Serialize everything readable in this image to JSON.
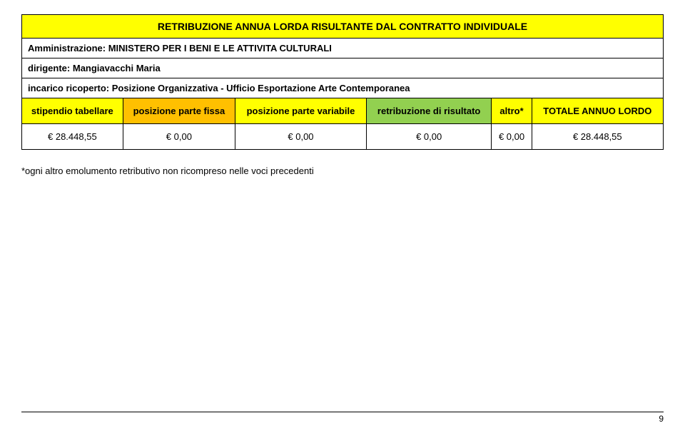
{
  "title": "RETRIBUZIONE ANNUA LORDA RISULTANTE DAL CONTRATTO INDIVIDUALE",
  "admin_label": "Amministrazione:",
  "admin_value": "MINISTERO PER I BENI E LE ATTIVITA CULTURALI",
  "dirigente_label": "dirigente:",
  "dirigente_value": "Mangiavacchi Maria",
  "incarico_label": "incarico ricoperto:",
  "incarico_value": "Posizione Organizzativa - Ufficio Esportazione Arte Contemporanea",
  "headers": {
    "stipendio": "stipendio tabellare",
    "fissa": "posizione parte fissa",
    "variabile": "posizione parte variabile",
    "risultato": "retribuzione di risultato",
    "altro": "altro*",
    "totale": "TOTALE ANNUO LORDO"
  },
  "values": {
    "stipendio": "€ 28.448,55",
    "fissa": "€ 0,00",
    "variabile": "€ 0,00",
    "risultato": "€ 0,00",
    "altro": "€ 0,00",
    "totale": "€ 28.448,55"
  },
  "footnote": "*ogni altro emolumento retributivo non ricompreso nelle voci precedenti",
  "page_number": "9",
  "colors": {
    "yellow": "#ffff00",
    "orange": "#ffc000",
    "green": "#92d050",
    "border": "#000000",
    "bg": "#ffffff"
  },
  "column_widths_pct": [
    16.6,
    16.6,
    16.6,
    16.6,
    16.6,
    16.6
  ]
}
